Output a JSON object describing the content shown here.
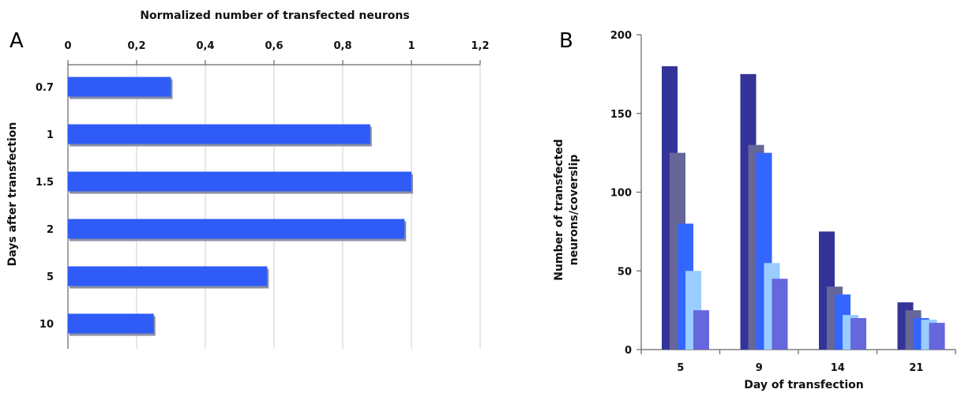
{
  "panels": {
    "a": {
      "label": "A"
    },
    "b": {
      "label": "B"
    }
  },
  "colors": {
    "bar_a": "#2f5cf6",
    "bar_a_shadow": "#8a8fa3",
    "series": [
      "#333399",
      "#666699",
      "#3366ff",
      "#99ccff",
      "#6666dd"
    ]
  },
  "chart_data": [
    {
      "type": "bar",
      "orientation": "horizontal",
      "categories": [
        "0.7",
        "1",
        "1.5",
        "2",
        "5",
        "10"
      ],
      "values": [
        0.3,
        0.88,
        1.0,
        0.98,
        0.58,
        0.25
      ],
      "title": "",
      "xlabel": "Normalized number of transfected neurons",
      "ylabel": "Days after transfection",
      "xlim": [
        0,
        1.2
      ],
      "xticks": [
        "0",
        "0,2",
        "0,4",
        "0,6",
        "0,8",
        "1",
        "1,2"
      ],
      "x_axis_position": "top",
      "grid": "vertical"
    },
    {
      "type": "bar",
      "orientation": "vertical",
      "categories": [
        "5",
        "9",
        "14",
        "21"
      ],
      "series": [
        {
          "values": [
            180,
            175,
            75,
            30
          ]
        },
        {
          "values": [
            125,
            130,
            40,
            25
          ]
        },
        {
          "values": [
            80,
            125,
            35,
            20
          ]
        },
        {
          "values": [
            50,
            55,
            22,
            19
          ]
        },
        {
          "values": [
            25,
            45,
            20,
            17
          ]
        }
      ],
      "title": "",
      "xlabel": "Day of transfection",
      "ylabel": "Number of transfected neurons/coverslip",
      "ylim": [
        0,
        200
      ],
      "yticks": [
        "0",
        "50",
        "100",
        "150",
        "200"
      ],
      "grid": false
    }
  ]
}
